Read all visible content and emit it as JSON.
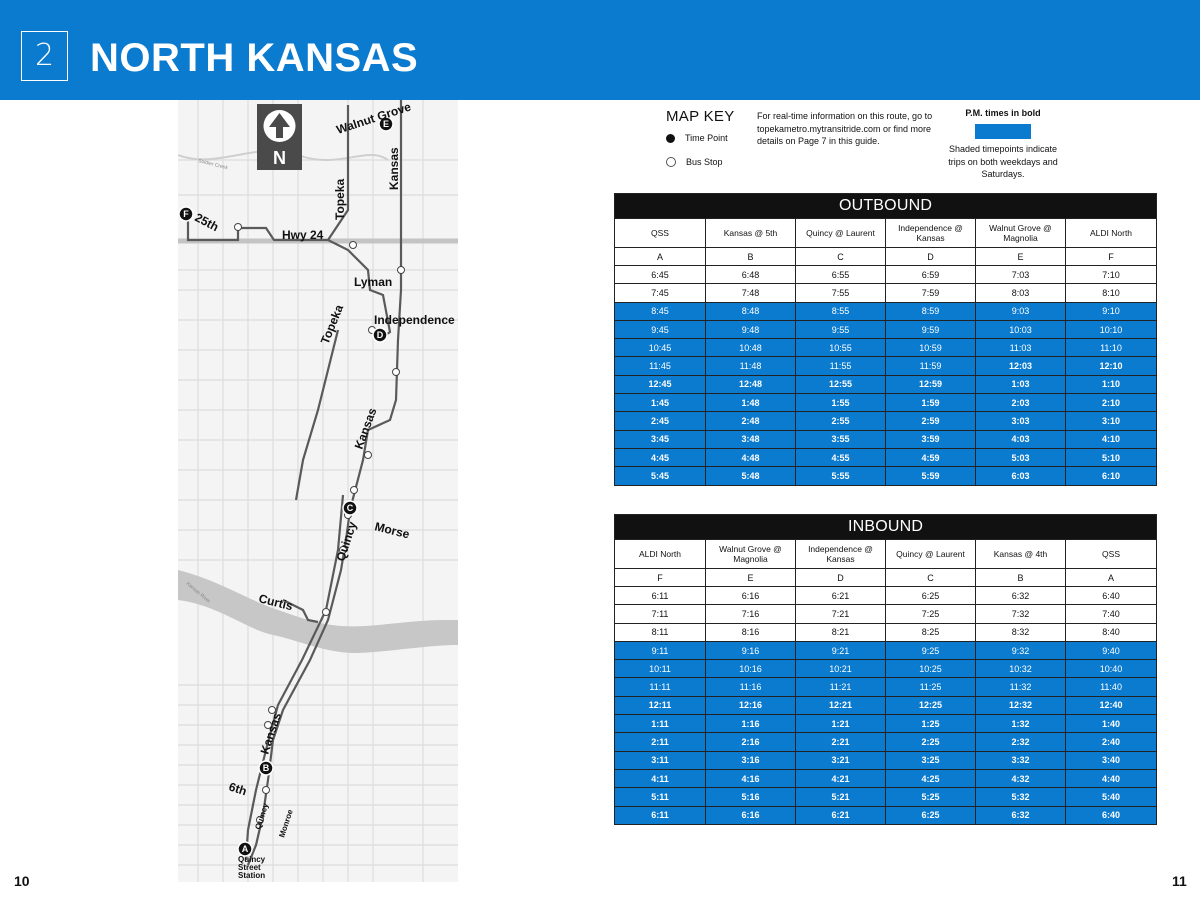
{
  "header": {
    "route_number": "2",
    "route_name": "NORTH KANSAS"
  },
  "page_numbers": {
    "left": "10",
    "right": "11"
  },
  "map": {
    "north_label": "N",
    "labels": {
      "walnut_grove": "Walnut Grove",
      "kansas_top": "Kansas",
      "topeka_top": "Topeka",
      "st25": "25th",
      "hwy24": "Hwy 24",
      "lyman": "Lyman",
      "independence": "Independence",
      "topeka_mid": "Topeka",
      "kansas_mid": "Kansas",
      "morse": "Morse",
      "quincy_mid": "Quincy",
      "curtis": "Curtis",
      "kansas_bottom": "Kansas",
      "sixth": "6th",
      "quincy_bottom": "Quincy",
      "monroe": "Monroe",
      "station_1": "Quincy",
      "station_2": "Street",
      "station_3": "Station",
      "soldier_creek": "Soldier Creek",
      "kansas_river": "Kansas River"
    },
    "timepoints": [
      "A",
      "B",
      "C",
      "D",
      "E",
      "F"
    ]
  },
  "map_key": {
    "title": "MAP KEY",
    "time_point": "Time Point",
    "bus_stop": "Bus Stop"
  },
  "realtime_info": "For real-time information on this route, go to topekametro.mytransitride.com or find more details on Page 7 in this guide.",
  "legend": {
    "pm_note": "P.M. times in bold",
    "shaded_note": "Shaded timepoints indicate trips on both weekdays and Saturdays.",
    "shade_color": "#0b7bd0"
  },
  "outbound": {
    "title": "OUTBOUND",
    "headers": [
      "QSS",
      "Kansas @ 5th",
      "Quincy @ Laurent",
      "Independence @ Kansas",
      "Walnut Grove @ Magnolia",
      "ALDI North"
    ],
    "letters": [
      "A",
      "B",
      "C",
      "D",
      "E",
      "F"
    ],
    "rows": [
      {
        "shaded": false,
        "pm_from": 6,
        "times": [
          "6:45",
          "6:48",
          "6:55",
          "6:59",
          "7:03",
          "7:10"
        ]
      },
      {
        "shaded": false,
        "pm_from": 6,
        "times": [
          "7:45",
          "7:48",
          "7:55",
          "7:59",
          "8:03",
          "8:10"
        ]
      },
      {
        "shaded": true,
        "pm_from": 6,
        "times": [
          "8:45",
          "8:48",
          "8:55",
          "8:59",
          "9:03",
          "9:10"
        ]
      },
      {
        "shaded": true,
        "pm_from": 6,
        "times": [
          "9:45",
          "9:48",
          "9:55",
          "9:59",
          "10:03",
          "10:10"
        ]
      },
      {
        "shaded": true,
        "pm_from": 6,
        "times": [
          "10:45",
          "10:48",
          "10:55",
          "10:59",
          "11:03",
          "11:10"
        ]
      },
      {
        "shaded": true,
        "pm_from": 4,
        "times": [
          "11:45",
          "11:48",
          "11:55",
          "11:59",
          "12:03",
          "12:10"
        ]
      },
      {
        "shaded": true,
        "pm_from": 0,
        "times": [
          "12:45",
          "12:48",
          "12:55",
          "12:59",
          "1:03",
          "1:10"
        ]
      },
      {
        "shaded": true,
        "pm_from": 0,
        "times": [
          "1:45",
          "1:48",
          "1:55",
          "1:59",
          "2:03",
          "2:10"
        ]
      },
      {
        "shaded": true,
        "pm_from": 0,
        "times": [
          "2:45",
          "2:48",
          "2:55",
          "2:59",
          "3:03",
          "3:10"
        ]
      },
      {
        "shaded": true,
        "pm_from": 0,
        "times": [
          "3:45",
          "3:48",
          "3:55",
          "3:59",
          "4:03",
          "4:10"
        ]
      },
      {
        "shaded": true,
        "pm_from": 0,
        "times": [
          "4:45",
          "4:48",
          "4:55",
          "4:59",
          "5:03",
          "5:10"
        ]
      },
      {
        "shaded": true,
        "pm_from": 0,
        "times": [
          "5:45",
          "5:48",
          "5:55",
          "5:59",
          "6:03",
          "6:10"
        ]
      }
    ]
  },
  "inbound": {
    "title": "INBOUND",
    "headers": [
      "ALDI North",
      "Walnut Grove @ Magnolia",
      "Independence @ Kansas",
      "Quincy @ Laurent",
      "Kansas @ 4th",
      "QSS"
    ],
    "letters": [
      "F",
      "E",
      "D",
      "C",
      "B",
      "A"
    ],
    "rows": [
      {
        "shaded": false,
        "pm_from": 6,
        "times": [
          "6:11",
          "6:16",
          "6:21",
          "6:25",
          "6:32",
          "6:40"
        ]
      },
      {
        "shaded": false,
        "pm_from": 6,
        "times": [
          "7:11",
          "7:16",
          "7:21",
          "7:25",
          "7:32",
          "7:40"
        ]
      },
      {
        "shaded": false,
        "pm_from": 6,
        "times": [
          "8:11",
          "8:16",
          "8:21",
          "8:25",
          "8:32",
          "8:40"
        ]
      },
      {
        "shaded": true,
        "pm_from": 6,
        "times": [
          "9:11",
          "9:16",
          "9:21",
          "9:25",
          "9:32",
          "9:40"
        ]
      },
      {
        "shaded": true,
        "pm_from": 6,
        "times": [
          "10:11",
          "10:16",
          "10:21",
          "10:25",
          "10:32",
          "10:40"
        ]
      },
      {
        "shaded": true,
        "pm_from": 6,
        "times": [
          "11:11",
          "11:16",
          "11:21",
          "11:25",
          "11:32",
          "11:40"
        ]
      },
      {
        "shaded": true,
        "pm_from": 0,
        "times": [
          "12:11",
          "12:16",
          "12:21",
          "12:25",
          "12:32",
          "12:40"
        ]
      },
      {
        "shaded": true,
        "pm_from": 0,
        "times": [
          "1:11",
          "1:16",
          "1:21",
          "1:25",
          "1:32",
          "1:40"
        ]
      },
      {
        "shaded": true,
        "pm_from": 0,
        "times": [
          "2:11",
          "2:16",
          "2:21",
          "2:25",
          "2:32",
          "2:40"
        ]
      },
      {
        "shaded": true,
        "pm_from": 0,
        "times": [
          "3:11",
          "3:16",
          "3:21",
          "3:25",
          "3:32",
          "3:40"
        ]
      },
      {
        "shaded": true,
        "pm_from": 0,
        "times": [
          "4:11",
          "4:16",
          "4:21",
          "4:25",
          "4:32",
          "4:40"
        ]
      },
      {
        "shaded": true,
        "pm_from": 0,
        "times": [
          "5:11",
          "5:16",
          "5:21",
          "5:25",
          "5:32",
          "5:40"
        ]
      },
      {
        "shaded": true,
        "pm_from": 0,
        "times": [
          "6:11",
          "6:16",
          "6:21",
          "6:25",
          "6:32",
          "6:40"
        ]
      }
    ]
  }
}
